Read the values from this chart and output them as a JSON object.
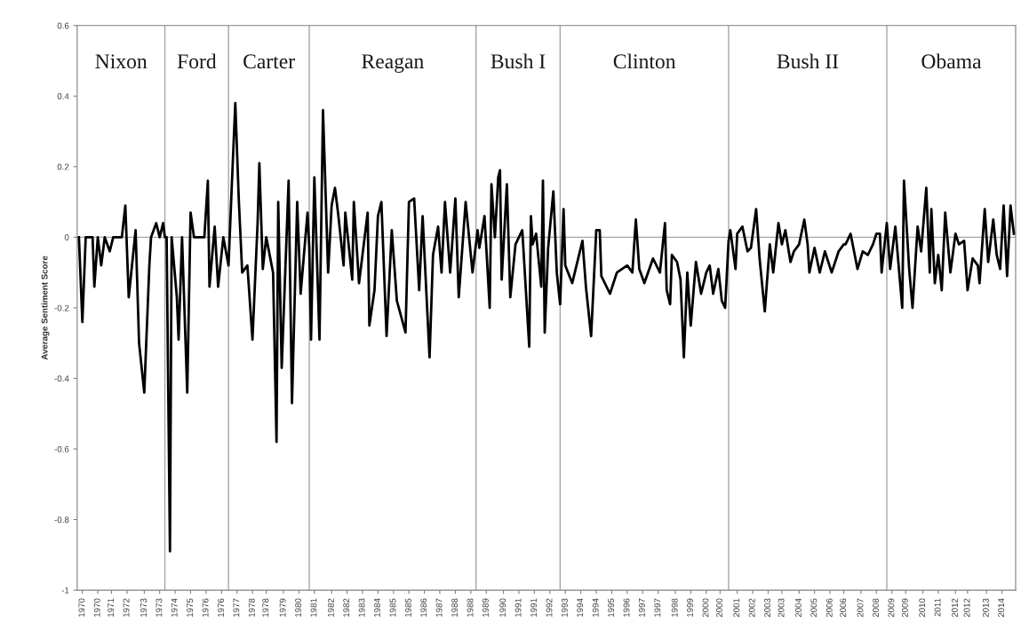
{
  "chart_data": {
    "type": "line",
    "ylabel": "Average Sentiment Score",
    "annotations": [
      "Nixon",
      "Ford",
      "Carter",
      "Reagan",
      "Bush I",
      "Clinton",
      "Bush II",
      "Obama"
    ],
    "xlim": [
      "1969-10",
      "2015-04"
    ],
    "ylim": [
      -1,
      0.6
    ],
    "yticks": [
      -1,
      -0.8,
      -0.6,
      -0.4,
      -0.2,
      0,
      0.2,
      0.4,
      0.6
    ],
    "xticks": [
      {
        "value": "1970-01",
        "label": "1970"
      },
      {
        "value": "1970-10",
        "label": "1970"
      },
      {
        "value": "1971-06",
        "label": "1971"
      },
      {
        "value": "1972-03",
        "label": "1972"
      },
      {
        "value": "1973-01",
        "label": "1973"
      },
      {
        "value": "1973-10",
        "label": "1973"
      },
      {
        "value": "1974-07",
        "label": "1974"
      },
      {
        "value": "1975-04",
        "label": "1975"
      },
      {
        "value": "1976-01",
        "label": "1976"
      },
      {
        "value": "1976-10",
        "label": "1976"
      },
      {
        "value": "1977-07",
        "label": "1977"
      },
      {
        "value": "1978-04",
        "label": "1978"
      },
      {
        "value": "1978-12",
        "label": "1978"
      },
      {
        "value": "1979-10",
        "label": "1979"
      },
      {
        "value": "1980-07",
        "label": "1980"
      },
      {
        "value": "1981-04",
        "label": "1981"
      },
      {
        "value": "1982-02",
        "label": "1982"
      },
      {
        "value": "1982-11",
        "label": "1982"
      },
      {
        "value": "1983-08",
        "label": "1983"
      },
      {
        "value": "1984-05",
        "label": "1984"
      },
      {
        "value": "1985-02",
        "label": "1985"
      },
      {
        "value": "1985-11",
        "label": "1985"
      },
      {
        "value": "1986-08",
        "label": "1986"
      },
      {
        "value": "1987-05",
        "label": "1987"
      },
      {
        "value": "1988-02",
        "label": "1988"
      },
      {
        "value": "1988-11",
        "label": "1988"
      },
      {
        "value": "1989-08",
        "label": "1989"
      },
      {
        "value": "1990-06",
        "label": "1990"
      },
      {
        "value": "1991-03",
        "label": "1991"
      },
      {
        "value": "1991-12",
        "label": "1991"
      },
      {
        "value": "1992-09",
        "label": "1992"
      },
      {
        "value": "1993-06",
        "label": "1993"
      },
      {
        "value": "1994-03",
        "label": "1994"
      },
      {
        "value": "1994-12",
        "label": "1994"
      },
      {
        "value": "1995-09",
        "label": "1995"
      },
      {
        "value": "1996-06",
        "label": "1996"
      },
      {
        "value": "1997-03",
        "label": "1997"
      },
      {
        "value": "1997-12",
        "label": "1997"
      },
      {
        "value": "1998-10",
        "label": "1998"
      },
      {
        "value": "1999-07",
        "label": "1999"
      },
      {
        "value": "2000-04",
        "label": "2000"
      },
      {
        "value": "2000-12",
        "label": "2000"
      },
      {
        "value": "2001-10",
        "label": "2001"
      },
      {
        "value": "2002-07",
        "label": "2002"
      },
      {
        "value": "2003-04",
        "label": "2003"
      },
      {
        "value": "2003-12",
        "label": "2003"
      },
      {
        "value": "2004-10",
        "label": "2004"
      },
      {
        "value": "2005-07",
        "label": "2005"
      },
      {
        "value": "2006-04",
        "label": "2006"
      },
      {
        "value": "2006-12",
        "label": "2006"
      },
      {
        "value": "2007-10",
        "label": "2007"
      },
      {
        "value": "2008-07",
        "label": "2008"
      },
      {
        "value": "2009-04",
        "label": "2009"
      },
      {
        "value": "2009-12",
        "label": "2009"
      },
      {
        "value": "2010-10",
        "label": "2010"
      },
      {
        "value": "2011-07",
        "label": "2011"
      },
      {
        "value": "2012-05",
        "label": "2012"
      },
      {
        "value": "2012-12",
        "label": "2012"
      },
      {
        "value": "2013-11",
        "label": "2013"
      },
      {
        "value": "2014-08",
        "label": "2014"
      }
    ],
    "ref_lines": [
      {
        "axis": "y",
        "value": 0,
        "color": "#a6a6a6"
      },
      {
        "axis": "x",
        "value": "1974-01",
        "color": "#a6a6a6"
      },
      {
        "axis": "x",
        "value": "1977-02",
        "color": "#a6a6a6"
      },
      {
        "axis": "x",
        "value": "1981-01",
        "color": "#a6a6a6"
      },
      {
        "axis": "x",
        "value": "1989-02",
        "color": "#a6a6a6"
      },
      {
        "axis": "x",
        "value": "1993-03",
        "color": "#a6a6a6"
      },
      {
        "axis": "x",
        "value": "2001-05",
        "color": "#a6a6a6"
      },
      {
        "axis": "x",
        "value": "2009-01",
        "color": "#a6a6a6"
      }
    ],
    "grid": false,
    "marker": "none",
    "line_style": "solid",
    "series": [
      {
        "color": "#000000",
        "x": [
          "1969-11",
          "1970-01",
          "1970-03",
          "1970-07",
          "1970-08",
          "1970-10",
          "1970-12",
          "1971-02",
          "1971-05",
          "1971-07",
          "1971-12",
          "1972-02",
          "1972-04",
          "1972-08",
          "1972-10",
          "1973-01",
          "1973-04",
          "1973-05",
          "1973-08",
          "1973-10",
          "1973-12",
          "1974-01",
          "1974-02",
          "1974-04",
          "1974-05",
          "1974-08",
          "1974-09",
          "1974-11",
          "1975-02",
          "1975-04",
          "1975-06",
          "1975-12",
          "1976-02",
          "1976-03",
          "1976-06",
          "1976-08",
          "1976-11",
          "1977-02",
          "1977-04",
          "1977-06",
          "1977-08",
          "1977-10",
          "1978-01",
          "1978-04",
          "1978-07",
          "1978-08",
          "1978-10",
          "1978-12",
          "1979-04",
          "1979-06",
          "1979-07",
          "1979-09",
          "1980-01",
          "1980-03",
          "1980-06",
          "1980-08",
          "1980-12",
          "1981-01",
          "1981-02",
          "1981-04",
          "1981-07",
          "1981-09",
          "1981-12",
          "1982-02",
          "1982-04",
          "1982-06",
          "1982-09",
          "1982-10",
          "1983-02",
          "1983-03",
          "1983-06",
          "1983-11",
          "1983-12",
          "1984-03",
          "1984-05",
          "1984-07",
          "1984-10",
          "1985-01",
          "1985-04",
          "1985-09",
          "1985-11",
          "1986-02",
          "1986-05",
          "1986-07",
          "1986-11",
          "1987-01",
          "1987-04",
          "1987-06",
          "1987-08",
          "1987-11",
          "1988-02",
          "1988-04",
          "1988-08",
          "1988-12",
          "1989-03",
          "1989-04",
          "1989-07",
          "1989-10",
          "1989-11",
          "1990-01",
          "1990-03",
          "1990-04",
          "1990-05",
          "1990-08",
          "1990-10",
          "1991-01",
          "1991-05",
          "1991-09",
          "1991-10",
          "1991-11",
          "1992-01",
          "1992-04",
          "1992-05",
          "1992-06",
          "1992-08",
          "1992-11",
          "1993-01",
          "1993-03",
          "1993-05",
          "1993-06",
          "1993-10",
          "1994-04",
          "1994-06",
          "1994-09",
          "1994-12",
          "1995-02",
          "1995-03",
          "1995-08",
          "1995-12",
          "1996-06",
          "1996-09",
          "1996-11",
          "1997-01",
          "1997-04",
          "1997-09",
          "1998-01",
          "1998-04",
          "1998-05",
          "1998-07",
          "1998-08",
          "1998-11",
          "1999-01",
          "1999-03",
          "1999-05",
          "1999-07",
          "1999-10",
          "2000-01",
          "2000-04",
          "2000-06",
          "2000-08",
          "2000-11",
          "2001-01",
          "2001-03",
          "2001-05",
          "2001-06",
          "2001-09",
          "2001-10",
          "2002-01",
          "2002-04",
          "2002-06",
          "2002-09",
          "2002-11",
          "2003-02",
          "2003-05",
          "2003-07",
          "2003-10",
          "2003-12",
          "2004-02",
          "2004-05",
          "2004-07",
          "2004-10",
          "2005-01",
          "2005-03",
          "2005-04",
          "2005-07",
          "2005-10",
          "2006-01",
          "2006-05",
          "2006-09",
          "2006-12",
          "2007-01",
          "2007-04",
          "2007-08",
          "2007-11",
          "2008-02",
          "2008-05",
          "2008-07",
          "2008-09",
          "2008-10",
          "2009-01",
          "2009-03",
          "2009-06",
          "2009-10",
          "2009-11",
          "2010-02",
          "2010-04",
          "2010-07",
          "2010-09",
          "2010-12",
          "2011-02",
          "2011-03",
          "2011-05",
          "2011-07",
          "2011-09",
          "2011-11",
          "2012-02",
          "2012-05",
          "2012-07",
          "2012-10",
          "2012-12",
          "2013-03",
          "2013-06",
          "2013-07",
          "2013-10",
          "2013-12",
          "2014-03",
          "2014-05",
          "2014-07",
          "2014-09",
          "2014-11",
          "2015-01",
          "2015-03"
        ],
        "values": [
          0,
          -0.24,
          0,
          0,
          -0.14,
          0,
          -0.08,
          0,
          -0.04,
          0,
          0,
          0.09,
          -0.17,
          0.02,
          -0.3,
          -0.44,
          -0.08,
          0,
          0.04,
          0,
          0.04,
          0,
          0,
          -0.89,
          0,
          -0.17,
          -0.29,
          0,
          -0.44,
          0.07,
          0,
          0,
          0.16,
          -0.14,
          0.03,
          -0.14,
          0,
          -0.08,
          0.15,
          0.38,
          0.11,
          -0.1,
          -0.08,
          -0.29,
          0.04,
          0.21,
          -0.09,
          0,
          -0.1,
          -0.58,
          0.1,
          -0.37,
          0.16,
          -0.47,
          0.1,
          -0.16,
          0.07,
          -0.03,
          -0.29,
          0.17,
          -0.29,
          0.36,
          -0.1,
          0.09,
          0.14,
          0.06,
          -0.08,
          0.07,
          -0.12,
          0.1,
          -0.13,
          0.07,
          -0.25,
          -0.15,
          0.06,
          0.1,
          -0.28,
          0.02,
          -0.18,
          -0.27,
          0.1,
          0.11,
          -0.15,
          0.06,
          -0.34,
          -0.05,
          0.03,
          -0.1,
          0.1,
          -0.1,
          0.11,
          -0.17,
          0.1,
          -0.1,
          0.02,
          -0.03,
          0.06,
          -0.2,
          0.15,
          0,
          0.17,
          0.19,
          -0.12,
          0.15,
          -0.17,
          -0.02,
          0.02,
          -0.31,
          0.06,
          -0.02,
          0.01,
          -0.14,
          0.16,
          -0.27,
          -0.03,
          0.13,
          -0.1,
          -0.19,
          0.08,
          -0.08,
          -0.13,
          -0.01,
          -0.14,
          -0.28,
          0.02,
          0.02,
          -0.11,
          -0.16,
          -0.1,
          -0.08,
          -0.1,
          0.05,
          -0.09,
          -0.13,
          -0.06,
          -0.1,
          0.04,
          -0.15,
          -0.19,
          -0.05,
          -0.07,
          -0.12,
          -0.34,
          -0.1,
          -0.25,
          -0.07,
          -0.16,
          -0.1,
          -0.08,
          -0.16,
          -0.09,
          -0.18,
          -0.2,
          -0.01,
          0.02,
          -0.09,
          0.01,
          0.03,
          -0.04,
          -0.03,
          0.08,
          -0.06,
          -0.21,
          -0.02,
          -0.1,
          0.04,
          -0.02,
          0.02,
          -0.07,
          -0.04,
          -0.02,
          0.05,
          -0.02,
          -0.1,
          -0.03,
          -0.1,
          -0.04,
          -0.1,
          -0.04,
          -0.02,
          -0.02,
          0.01,
          -0.09,
          -0.04,
          -0.05,
          -0.02,
          0.01,
          0.01,
          -0.1,
          0.04,
          -0.09,
          0.03,
          -0.2,
          0.16,
          -0.09,
          -0.2,
          0.03,
          -0.04,
          0.14,
          -0.1,
          0.08,
          -0.13,
          -0.05,
          -0.15,
          0.07,
          -0.1,
          0.01,
          -0.02,
          -0.01,
          -0.15,
          -0.06,
          -0.08,
          -0.13,
          0.08,
          -0.07,
          0.05,
          -0.05,
          -0.09,
          0.09,
          -0.11,
          0.09,
          0.01
        ]
      }
    ]
  }
}
